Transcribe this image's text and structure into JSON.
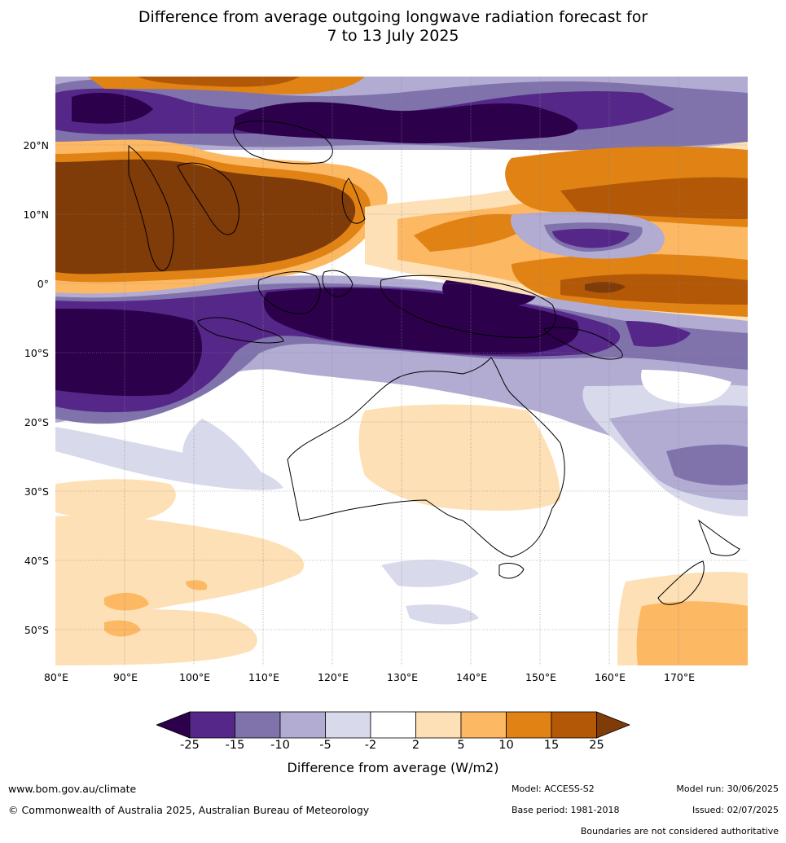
{
  "title_line1": "Difference from average outgoing longwave radiation forecast for",
  "title_line2": "7 to 13 July 2025",
  "map": {
    "lat_labels": [
      "20°N",
      "10°N",
      "0°",
      "10°S",
      "20°S",
      "30°S",
      "40°S",
      "50°S"
    ],
    "lon_labels": [
      "80°E",
      "90°E",
      "100°E",
      "110°E",
      "120°E",
      "130°E",
      "140°E",
      "150°E",
      "160°E",
      "170°E"
    ]
  },
  "legend": {
    "title": "Difference from average (W/m2)",
    "ticks": [
      "-25",
      "-15",
      "-10",
      "-5",
      "-2",
      "2",
      "5",
      "10",
      "15",
      "25"
    ],
    "colors": [
      "#2d004b",
      "#542788",
      "#8073ac",
      "#b2abd2",
      "#d8daeb",
      "#ffffff",
      "#fee0b6",
      "#fdb863",
      "#e08214",
      "#b35806",
      "#7f3b08"
    ]
  },
  "footer": {
    "website": "www.bom.gov.au/climate",
    "copyright": "© Commonwealth of Australia 2025, Australian Bureau of Meteorology",
    "model": "Model: ACCESS-S2",
    "base_period": "Base period: 1981-2018",
    "model_run": "Model run: 30/06/2025",
    "issued": "Issued: 02/07/2025",
    "disclaimer": "Boundaries are not considered authoritative"
  }
}
